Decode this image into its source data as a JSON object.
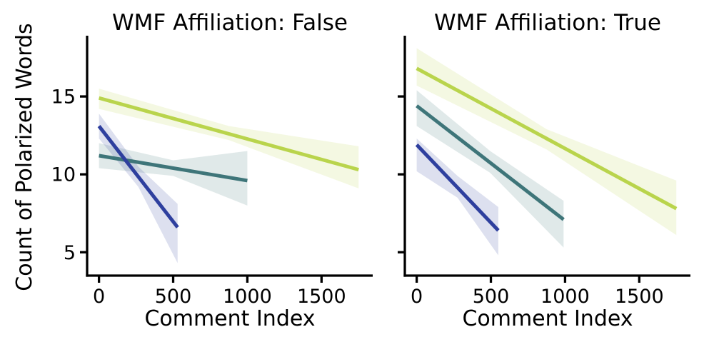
{
  "figure": {
    "background": "#ffffff",
    "spine_color": "#000000",
    "text_color": "#000000",
    "ylabel": "Count of Polarized Words"
  },
  "chart_data": [
    {
      "type": "line",
      "panel_id": "panel-wmf-false",
      "title": "WMF Affiliation: False",
      "xlabel": "Comment Index",
      "ylabel": "Count of Polarized Words",
      "xlim": [
        -80,
        1845
      ],
      "ylim": [
        3.5,
        18.9
      ],
      "xticks": [
        0,
        500,
        1000,
        1500
      ],
      "yticks": [
        5,
        10,
        15
      ],
      "show_ytick_labels": true,
      "grid": false,
      "legend": "none",
      "series": [
        {
          "name": "series-green",
          "color": "#b9d44c",
          "x": [
            0,
            1750
          ],
          "y": [
            14.9,
            10.3
          ],
          "band": {
            "x": [
              0,
              875,
              1750
            ],
            "lo": [
              14.2,
              12.2,
              9.1
            ],
            "hi": [
              15.5,
              13.1,
              11.8
            ]
          }
        },
        {
          "name": "series-teal",
          "color": "#3e7579",
          "x": [
            0,
            1000
          ],
          "y": [
            11.2,
            9.6
          ],
          "band": {
            "x": [
              0,
              500,
              1000
            ],
            "lo": [
              10.4,
              9.9,
              8.0
            ],
            "hi": [
              12.0,
              10.9,
              11.5
            ]
          }
        },
        {
          "name": "series-blue",
          "color": "#2e3f9e",
          "x": [
            0,
            530
          ],
          "y": [
            13.1,
            6.6
          ],
          "band": {
            "x": [
              0,
              265,
              530
            ],
            "lo": [
              12.3,
              9.2,
              4.3
            ],
            "hi": [
              13.9,
              10.5,
              8.1
            ]
          }
        }
      ]
    },
    {
      "type": "line",
      "panel_id": "panel-wmf-true",
      "title": "WMF Affiliation: True",
      "xlabel": "Comment Index",
      "ylabel": "Count of Polarized Words",
      "xlim": [
        -80,
        1845
      ],
      "ylim": [
        3.5,
        18.9
      ],
      "xticks": [
        0,
        500,
        1000,
        1500
      ],
      "yticks": [
        5,
        10,
        15
      ],
      "show_ytick_labels": false,
      "grid": false,
      "legend": "none",
      "series": [
        {
          "name": "series-green",
          "color": "#b9d44c",
          "x": [
            0,
            1750
          ],
          "y": [
            16.8,
            7.8
          ],
          "band": {
            "x": [
              0,
              875,
              1750
            ],
            "lo": [
              15.7,
              11.6,
              6.1
            ],
            "hi": [
              18.1,
              12.9,
              9.6
            ]
          }
        },
        {
          "name": "series-teal",
          "color": "#3e7579",
          "x": [
            0,
            990
          ],
          "y": [
            14.4,
            7.1
          ],
          "band": {
            "x": [
              0,
              495,
              990
            ],
            "lo": [
              13.1,
              10.1,
              5.3
            ],
            "hi": [
              15.4,
              11.5,
              8.3
            ]
          }
        },
        {
          "name": "series-blue",
          "color": "#2e3f9e",
          "x": [
            0,
            550
          ],
          "y": [
            11.9,
            6.4
          ],
          "band": {
            "x": [
              0,
              275,
              550
            ],
            "lo": [
              10.2,
              8.5,
              4.8
            ],
            "hi": [
              12.3,
              9.9,
              7.9
            ]
          }
        }
      ]
    }
  ]
}
